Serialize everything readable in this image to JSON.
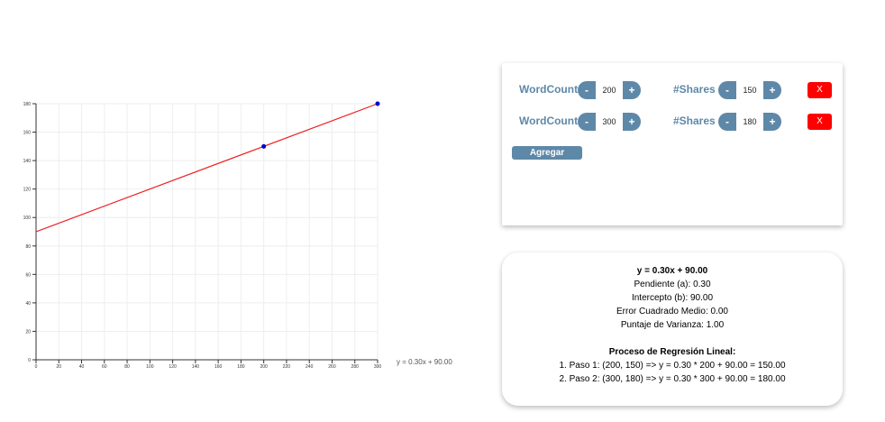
{
  "chart_data": {
    "type": "scatter",
    "xlim": [
      0,
      300
    ],
    "ylim": [
      0,
      180
    ],
    "x_ticks": [
      0,
      20,
      40,
      60,
      80,
      100,
      120,
      140,
      160,
      180,
      200,
      220,
      240,
      260,
      280,
      300
    ],
    "y_ticks": [
      0,
      20,
      40,
      60,
      80,
      100,
      120,
      140,
      160,
      180
    ],
    "points": [
      {
        "x": 200,
        "y": 150
      },
      {
        "x": 300,
        "y": 180
      }
    ],
    "regression": {
      "slope": 0.3,
      "intercept": 90
    },
    "equation_label": "y = 0.30x + 90.00",
    "grid": true,
    "colors": {
      "points": "#0000cc",
      "line": "#ee2222",
      "grid": "#eeeeee",
      "axis": "#333333"
    }
  },
  "form": {
    "rows": [
      {
        "x_label": "WordCount",
        "x_value": "200",
        "y_label": "#Shares",
        "y_value": "150",
        "minus": "-",
        "plus": "+",
        "delete_label": "X"
      },
      {
        "x_label": "WordCount",
        "x_value": "300",
        "y_label": "#Shares",
        "y_value": "180",
        "minus": "-",
        "plus": "+",
        "delete_label": "X"
      }
    ],
    "add_label": "Agregar"
  },
  "results": {
    "equation": "y = 0.30x + 90.00",
    "slope": "Pendiente (a): 0.30",
    "intercept": "Intercepto (b): 90.00",
    "mse": "Error Cuadrado Medio: 0.00",
    "variance": "Puntaje de Varianza: 1.00",
    "process_title": "Proceso de Regresión Lineal:",
    "steps": [
      "1. Paso 1: (200, 150) => y = 0.30 * 200 + 90.00 = 150.00",
      "2. Paso 2: (300, 180) => y = 0.30 * 300 + 90.00 = 180.00"
    ]
  },
  "colors": {
    "accent": "#5e88a8",
    "danger": "#ff0000"
  }
}
